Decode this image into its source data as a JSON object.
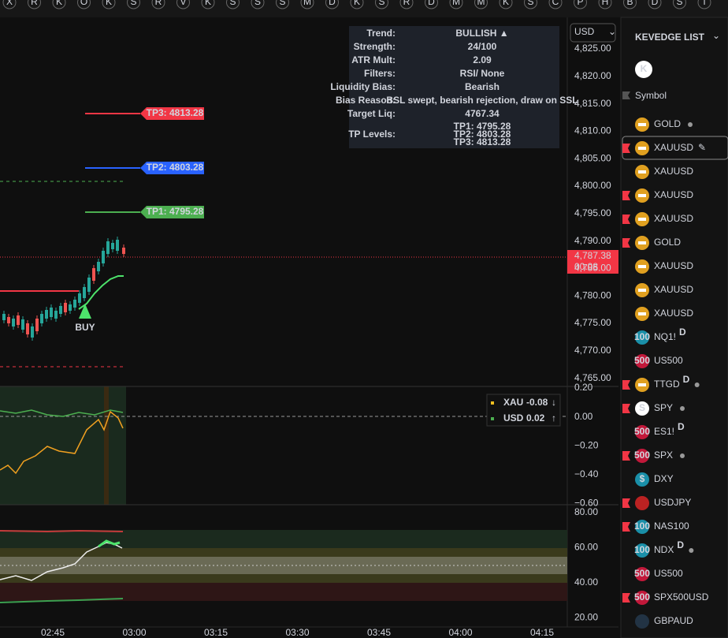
{
  "top_bar": {
    "letters": [
      "X",
      "R",
      "K",
      "O",
      "K",
      "S",
      "R",
      "V",
      "K",
      "S",
      "S",
      "S",
      "M",
      "D",
      "K",
      "S",
      "R",
      "D",
      "M",
      "M",
      "K",
      "S",
      "C",
      "P",
      "H",
      "B",
      "D",
      "S",
      "I"
    ]
  },
  "currency": "USD",
  "info_panel": {
    "rows": [
      {
        "label": "Trend:",
        "value": "BULLISH ▲"
      },
      {
        "label": "Strength:",
        "value": "24/100"
      },
      {
        "label": "ATR Mult:",
        "value": "2.09"
      },
      {
        "label": "Filters:",
        "value": "RSI/ None"
      },
      {
        "label": "Liquidity Bias:",
        "value": "Bearish"
      },
      {
        "label": "Bias Reason:",
        "value": "BSL swept, bearish rejection, draw on SSL"
      },
      {
        "label": "Target Liq:",
        "value": "4767.34"
      }
    ],
    "tp_label": "TP Levels:",
    "tp_lines": [
      "TP1: 4795.28",
      "TP2: 4803.28",
      "TP3: 4813.28"
    ]
  },
  "tp_tags": [
    "TP3: 4813.28",
    "TP2: 4803.28",
    "TP1: 4795.28"
  ],
  "buy_label": "BUY",
  "price_axis": [
    "4,825.00",
    "4,820.00",
    "4,815.00",
    "4,810.00",
    "4,805.00",
    "4,800.00",
    "4,795.00",
    "4,790.00",
    "4,785.00",
    "4,780.00",
    "4,775.00",
    "4,770.00",
    "4,765.00"
  ],
  "current_price": {
    "price": "4,787.38",
    "countdown": "00:08"
  },
  "pane2": {
    "axis": [
      "0.20",
      "0.00",
      "−0.20",
      "−0.40",
      "−0.60"
    ],
    "legend": [
      {
        "name": "XAU",
        "value": "-0.08",
        "arrow": "↓"
      },
      {
        "name": "USD",
        "value": "0.02",
        "arrow": "↑"
      }
    ]
  },
  "pane3": {
    "axis": [
      "80.00",
      "60.00",
      "40.00",
      "20.00"
    ]
  },
  "time_axis": [
    "02:45",
    "03:00",
    "03:15",
    "03:30",
    "03:45",
    "04:00",
    "04:15"
  ],
  "watchlist": {
    "title": "KEVEDGE LIST",
    "avatar": "K",
    "header": "Symbol",
    "items": [
      {
        "symbol": "GOLD"
      },
      {
        "symbol": "XAUUSD"
      },
      {
        "symbol": "XAUUSD"
      },
      {
        "symbol": "XAUUSD"
      },
      {
        "symbol": "XAUUSD"
      },
      {
        "symbol": "GOLD"
      },
      {
        "symbol": "XAUUSD"
      },
      {
        "symbol": "XAUUSD"
      },
      {
        "symbol": "XAUUSD"
      },
      {
        "symbol": "NQ1!",
        "icon": "100",
        "badge": "D"
      },
      {
        "symbol": "US500",
        "icon": "500"
      },
      {
        "symbol": "TTGD",
        "badge": "D"
      },
      {
        "symbol": "SPY",
        "icon": "S"
      },
      {
        "symbol": "ES1!",
        "icon": "500",
        "badge": "D"
      },
      {
        "symbol": "SPX",
        "icon": "500"
      },
      {
        "symbol": "DXY",
        "icon": "$"
      },
      {
        "symbol": "USDJPY"
      },
      {
        "symbol": "NAS100",
        "icon": "100"
      },
      {
        "symbol": "NDX",
        "icon": "100",
        "badge": "D"
      },
      {
        "symbol": "US500",
        "icon": "500"
      },
      {
        "symbol": "SPX500USD",
        "icon": "500"
      },
      {
        "symbol": "GBPAUD"
      }
    ]
  }
}
